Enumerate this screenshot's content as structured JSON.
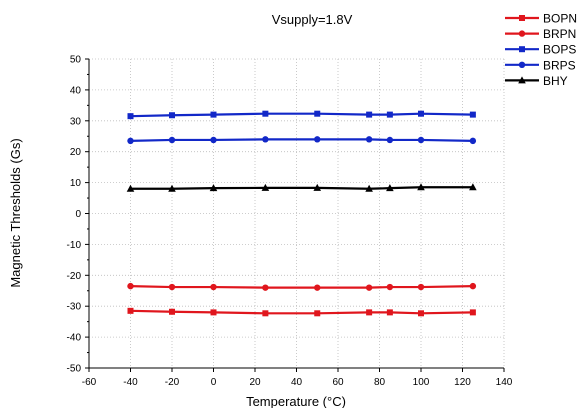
{
  "chart_data": {
    "type": "line",
    "title": "Vsupply=1.8V",
    "xlabel": "Temperature (°C)",
    "ylabel": "Magnetic Thresholds (Gs)",
    "xlim": [
      -60,
      140
    ],
    "ylim": [
      -50,
      50
    ],
    "xticks": [
      -60,
      -40,
      -20,
      0,
      20,
      40,
      60,
      80,
      100,
      120,
      140
    ],
    "yticks": [
      -50,
      -40,
      -30,
      -20,
      -10,
      0,
      10,
      20,
      30,
      40,
      50
    ],
    "grid": true,
    "legend_position": "top-right",
    "x": [
      -40,
      -20,
      0,
      25,
      50,
      75,
      85,
      100,
      125
    ],
    "series": [
      {
        "name": "BOPN",
        "color": "#e0161d",
        "marker": "square",
        "values": [
          -31.5,
          -31.8,
          -32.0,
          -32.3,
          -32.3,
          -32.0,
          -32.0,
          -32.3,
          -32.0
        ]
      },
      {
        "name": "BRPN",
        "color": "#e0161d",
        "marker": "circle",
        "values": [
          -23.5,
          -23.8,
          -23.8,
          -24.0,
          -24.0,
          -24.0,
          -23.8,
          -23.8,
          -23.5
        ]
      },
      {
        "name": "BOPS",
        "color": "#1228c8",
        "marker": "square",
        "values": [
          31.5,
          31.8,
          32.0,
          32.3,
          32.3,
          32.0,
          32.0,
          32.3,
          32.0
        ]
      },
      {
        "name": "BRPS",
        "color": "#1228c8",
        "marker": "circle",
        "values": [
          23.5,
          23.8,
          23.8,
          24.0,
          24.0,
          24.0,
          23.8,
          23.8,
          23.5
        ]
      },
      {
        "name": "BHY",
        "color": "#000000",
        "marker": "triangle",
        "values": [
          8.0,
          8.0,
          8.2,
          8.3,
          8.3,
          8.0,
          8.2,
          8.5,
          8.5
        ]
      }
    ]
  }
}
